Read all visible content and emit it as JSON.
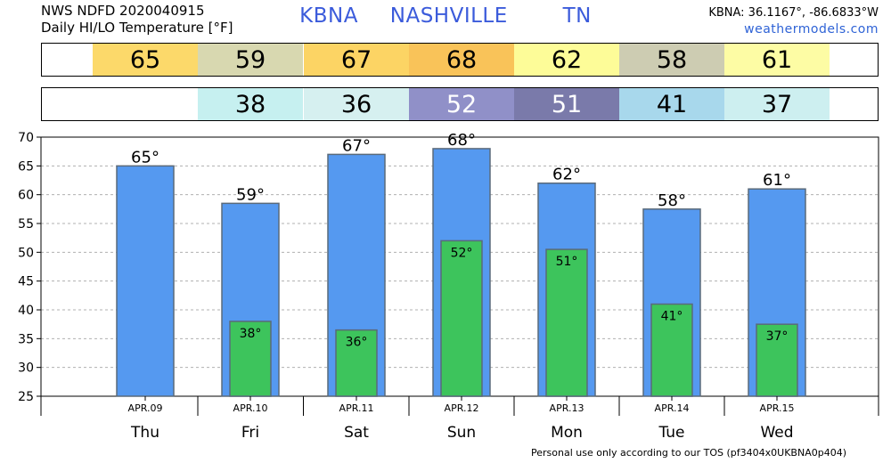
{
  "header": {
    "line1": "NWS NDFD 2020040915",
    "line2": "Daily HI/LO Temperature [°F]",
    "station": "KBNA",
    "city": "NASHVILLE",
    "state": "TN",
    "coords": "KBNA: 36.1167°, -86.6833°W",
    "site": "weathermodels.com"
  },
  "footer": "Personal use only according to our TOS (pf3404x0UKBNA0p404)",
  "strips": {
    "high": [
      {
        "value": "65",
        "color": "#fcd96a"
      },
      {
        "value": "59",
        "color": "#d8d8b0"
      },
      {
        "value": "67",
        "color": "#fcd464"
      },
      {
        "value": "68",
        "color": "#f9c359"
      },
      {
        "value": "62",
        "color": "#fdfc98"
      },
      {
        "value": "58",
        "color": "#cdccb2"
      },
      {
        "value": "61",
        "color": "#fdfca4"
      }
    ],
    "low": [
      {
        "value": "",
        "color": "#ffffff"
      },
      {
        "value": "38",
        "color": "#c6f0f0"
      },
      {
        "value": "36",
        "color": "#d6f0f0"
      },
      {
        "value": "52",
        "color": "#9090c8",
        "text": "#ffffff"
      },
      {
        "value": "51",
        "color": "#7a7aaa",
        "text": "#ffffff"
      },
      {
        "value": "41",
        "color": "#a8d8ec"
      },
      {
        "value": "37",
        "color": "#cdeff0"
      }
    ]
  },
  "chart_data": {
    "type": "bar",
    "categories": [
      "Thu",
      "Fri",
      "Sat",
      "Sun",
      "Mon",
      "Tue",
      "Wed"
    ],
    "dates": [
      "APR.09",
      "APR.10",
      "APR.11",
      "APR.12",
      "APR.13",
      "APR.14",
      "APR.15"
    ],
    "series": [
      {
        "values": [
          65,
          58.5,
          67,
          68,
          62,
          57.5,
          61
        ],
        "labels": [
          "65°",
          "59°",
          "67°",
          "68°",
          "62°",
          "58°",
          "61°"
        ],
        "color": "#5599f0"
      },
      {
        "values": [
          null,
          38,
          36.5,
          52,
          50.5,
          41,
          37.5
        ],
        "labels": [
          "",
          "38°",
          "36°",
          "52°",
          "51°",
          "41°",
          "37°"
        ],
        "color": "#3dc45c"
      }
    ],
    "ylim": [
      25,
      70
    ],
    "yticks": [
      25,
      30,
      35,
      40,
      45,
      50,
      55,
      60,
      65,
      70
    ],
    "grid": true
  }
}
